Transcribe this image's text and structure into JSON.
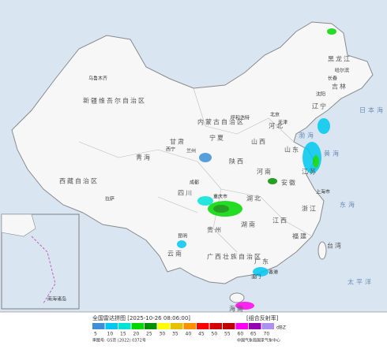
{
  "title": "全国雷达拼图 [2025-10-26 08:06:00]",
  "product": "[组合反射率]",
  "legend": {
    "unit": "dBZ",
    "labels": [
      5,
      10,
      15,
      20,
      25,
      30,
      35,
      40,
      45,
      50,
      55,
      60,
      65,
      70
    ],
    "colors": [
      "#3e8fd8",
      "#00c8f0",
      "#00e4d8",
      "#00d800",
      "#019000",
      "#ffff00",
      "#e7c000",
      "#ff9000",
      "#ff0000",
      "#d60000",
      "#c00000",
      "#ff00f0",
      "#9600b4",
      "#ad90f0"
    ]
  },
  "footer": {
    "approval": "审图号: GS京 (2022) 0372号",
    "source": "中国气象局国家气象中心"
  },
  "map": {
    "labels": [
      "新疆维吾尔自治区",
      "西藏自治区",
      "青海",
      "内蒙古自治区",
      "黑龙江",
      "吉林",
      "辽宁",
      "甘肃",
      "宁夏",
      "陕西",
      "山西",
      "河北",
      "北京",
      "天津",
      "山东",
      "河南",
      "四川",
      "重庆市",
      "湖北",
      "安徽",
      "江苏",
      "上海市",
      "浙江",
      "湖南",
      "江西",
      "贵州",
      "云南",
      "广西壮族自治区",
      "广东",
      "福建",
      "台湾",
      "海南",
      "香港",
      "澳门",
      "乌鲁木齐",
      "拉萨",
      "西宁",
      "兰州",
      "成都",
      "昆明",
      "呼和浩特",
      "哈尔滨",
      "长春",
      "沈阳",
      "渤海",
      "黄海",
      "东海",
      "日本海",
      "太平洋",
      "南海诸岛"
    ]
  }
}
